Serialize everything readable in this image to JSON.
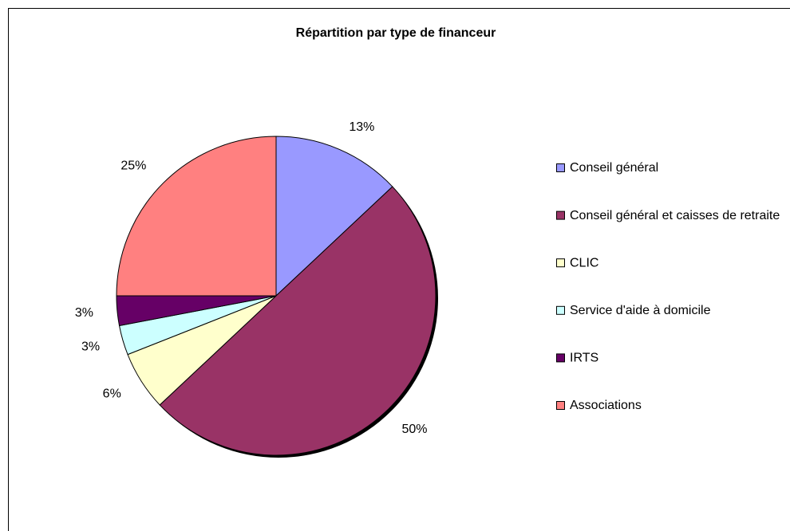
{
  "chart_data": {
    "type": "pie",
    "title": "Répartition par type de financeur",
    "categories": [
      "Conseil général",
      "Conseil général et caisses de retraite",
      "CLIC",
      "Service d'aide à domicile",
      "IRTS",
      "Associations"
    ],
    "values": [
      13,
      50,
      6,
      3,
      3,
      25
    ],
    "value_labels": [
      "13%",
      "50%",
      "6%",
      "3%",
      "3%",
      "25%"
    ],
    "colors": [
      "#9999ff",
      "#993366",
      "#ffffcc",
      "#ccffff",
      "#660066",
      "#ff8080"
    ],
    "legend": "right"
  }
}
